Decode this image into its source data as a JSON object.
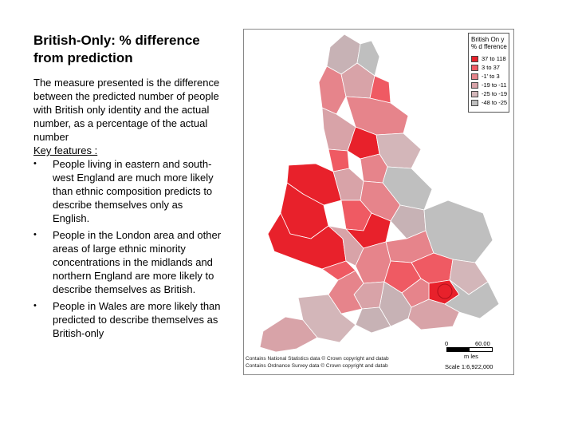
{
  "title": "British-Only: % difference from prediction",
  "description": "The measure presented is the difference between the predicted number of people with British only identity and the actual number, as a percentage of the actual number",
  "key_features_label": "Key features :",
  "bullet_glyph": "•",
  "bullets": [
    "People living in eastern and south-west England are much more likely than ethnic composition predicts to describe themselves only as English.",
    "People in the London area and other areas of large ethnic minority concentrations in the midlands and northern England are more likely to describe themselves as British.",
    "People in Wales are more likely than predicted to describe themselves as British-only"
  ],
  "map": {
    "legend": {
      "title_line1": "British On y",
      "title_line2": "% d fference",
      "items": [
        {
          "label": "37 to 118",
          "color": "#e8212b"
        },
        {
          "label": "3 to  37",
          "color": "#ef5a63"
        },
        {
          "label": "-1’ to    3",
          "color": "#e6848b"
        },
        {
          "label": "-19 to -11",
          "color": "#d8a3a8"
        },
        {
          "label": "-25 to -19",
          "color": "#d3b6b9"
        },
        {
          "label": "-48 to -25",
          "color": "#bfbfbf"
        }
      ]
    },
    "scale": {
      "zero": "0",
      "distance": "60.00",
      "unit": "m les",
      "scale_text": "Scale   1:6,922,000"
    },
    "credits": [
      "Contains National Statistics data © Crown copyright and datab",
      "Contains Ordnance Survey data © Crown copyright and datab"
    ]
  }
}
